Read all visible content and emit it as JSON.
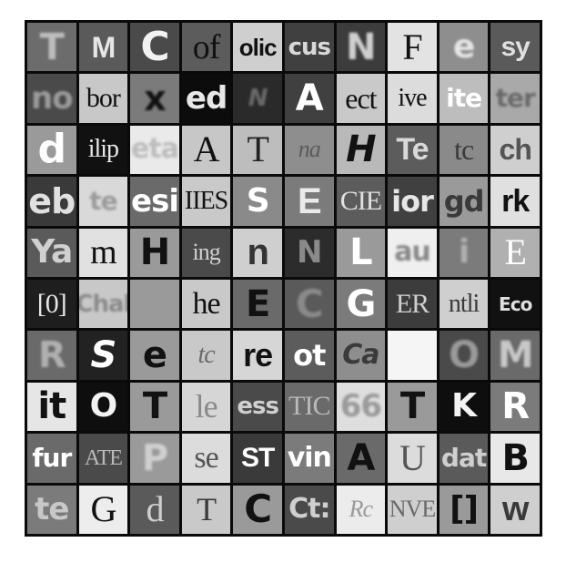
{
  "tiles": [
    {
      "t": "T",
      "bg": "#6c6c6c",
      "fg": "#bdbdbd",
      "fs": 40,
      "c": "blur"
    },
    {
      "t": "M",
      "bg": "#5a5a5a",
      "fg": "#e6e6e6",
      "fs": 32,
      "c": "sans"
    },
    {
      "t": "C",
      "bg": "#4a4a4a",
      "fg": "#f2f2f2",
      "fs": 44,
      "c": ""
    },
    {
      "t": "of",
      "bg": "#5c5c5c",
      "fg": "#111111",
      "fs": 38,
      "c": "serif"
    },
    {
      "t": "olic",
      "bg": "#cfcfcf",
      "fg": "#111111",
      "fs": 26,
      "c": "sans"
    },
    {
      "t": "cus",
      "bg": "#404040",
      "fg": "#d9d9d9",
      "fs": 26,
      "c": ""
    },
    {
      "t": "N",
      "bg": "#3c3c3c",
      "fg": "#cfcfcf",
      "fs": 40,
      "c": "blur"
    },
    {
      "t": "F",
      "bg": "#e3e3e3",
      "fg": "#111111",
      "fs": 40,
      "c": "serif"
    },
    {
      "t": "e",
      "bg": "#8e8e8e",
      "fg": "#e6e6e6",
      "fs": 36,
      "c": "blur"
    },
    {
      "t": "sy",
      "bg": "#5a5a5a",
      "fg": "#e0e0e0",
      "fs": 30,
      "c": "sans"
    },
    {
      "t": "no",
      "bg": "#4a4a4a",
      "fg": "#9a9a9a",
      "fs": 34,
      "c": "blur"
    },
    {
      "t": "bor",
      "bg": "#c8c8c8",
      "fg": "#111111",
      "fs": 30,
      "c": "serif"
    },
    {
      "t": "x",
      "bg": "#7b7b7b",
      "fg": "#111111",
      "fs": 38,
      "c": "blur"
    },
    {
      "t": "ed",
      "bg": "#0c0c0c",
      "fg": "#e8e8e8",
      "fs": 34,
      "c": ""
    },
    {
      "t": "N",
      "bg": "#2a2a2a",
      "fg": "#6a6a6a",
      "fs": 26,
      "c": "blur italic"
    },
    {
      "t": "A",
      "bg": "#404040",
      "fg": "#ffffff",
      "fs": 40,
      "c": ""
    },
    {
      "t": "ect",
      "bg": "#c9c9c9",
      "fg": "#111111",
      "fs": 32,
      "c": "serif"
    },
    {
      "t": "ive",
      "bg": "#dcdcdc",
      "fg": "#111111",
      "fs": 28,
      "c": "serif"
    },
    {
      "t": "ite",
      "bg": "#bdbdbd",
      "fg": "#ffffff",
      "fs": 28,
      "c": ""
    },
    {
      "t": "ter",
      "bg": "#a9a9a9",
      "fg": "#6a6a6a",
      "fs": 28,
      "c": "blur"
    },
    {
      "t": "d",
      "bg": "#9a9a9a",
      "fg": "#ffffff",
      "fs": 44,
      "c": ""
    },
    {
      "t": "ilip",
      "bg": "#111111",
      "fg": "#e8e8e8",
      "fs": 28,
      "c": "serif"
    },
    {
      "t": "eta",
      "bg": "#eaeaea",
      "fg": "#bdbdbd",
      "fs": 30,
      "c": "blur"
    },
    {
      "t": "A",
      "bg": "#c7c7c7",
      "fg": "#111111",
      "fs": 40,
      "c": "serif"
    },
    {
      "t": "T",
      "bg": "#bdbdbd",
      "fg": "#222222",
      "fs": 40,
      "c": "serif"
    },
    {
      "t": "na",
      "bg": "#8e8e8e",
      "fg": "#5a5a5a",
      "fs": 26,
      "c": "serif italic"
    },
    {
      "t": "H",
      "bg": "#b9b9b9",
      "fg": "#111111",
      "fs": 40,
      "c": "italic"
    },
    {
      "t": "Te",
      "bg": "#5c5c5c",
      "fg": "#d9d9d9",
      "fs": 34,
      "c": "sans"
    },
    {
      "t": "tc",
      "bg": "#8a8a8a",
      "fg": "#3a3a3a",
      "fs": 32,
      "c": "serif"
    },
    {
      "t": "ch",
      "bg": "#cfcfcf",
      "fg": "#555555",
      "fs": 32,
      "c": "sans"
    },
    {
      "t": "eb",
      "bg": "#3a3a3a",
      "fg": "#e0e0e0",
      "fs": 38,
      "c": ""
    },
    {
      "t": "te",
      "bg": "#d9d9d9",
      "fg": "#9a9a9a",
      "fs": 28,
      "c": "blur"
    },
    {
      "t": "esi",
      "bg": "#6a6a6a",
      "fg": "#ffffff",
      "fs": 34,
      "c": ""
    },
    {
      "t": "IIES",
      "bg": "#c9c9c9",
      "fg": "#111111",
      "fs": 28,
      "c": "serif"
    },
    {
      "t": "S",
      "bg": "#8a8a8a",
      "fg": "#ffffff",
      "fs": 36,
      "c": ""
    },
    {
      "t": "E",
      "bg": "#7b7b7b",
      "fg": "#eaeaea",
      "fs": 40,
      "c": "sans"
    },
    {
      "t": "CIE",
      "bg": "#5c5c5c",
      "fg": "#e0e0e0",
      "fs": 30,
      "c": "serif"
    },
    {
      "t": "ior",
      "bg": "#404040",
      "fg": "#e6e6e6",
      "fs": 32,
      "c": ""
    },
    {
      "t": "gd",
      "bg": "#9a9a9a",
      "fg": "#3a3a3a",
      "fs": 32,
      "c": ""
    },
    {
      "t": "rk",
      "bg": "#e0e0e0",
      "fg": "#111111",
      "fs": 34,
      "c": "sans"
    },
    {
      "t": "Ya",
      "bg": "#5a5a5a",
      "fg": "#d0d0d0",
      "fs": 36,
      "c": ""
    },
    {
      "t": "m",
      "bg": "#e1e1e1",
      "fg": "#111111",
      "fs": 38,
      "c": "serif"
    },
    {
      "t": "H",
      "bg": "#9a9a9a",
      "fg": "#111111",
      "fs": 40,
      "c": ""
    },
    {
      "t": "ing",
      "bg": "#4a4a4a",
      "fg": "#d0d0d0",
      "fs": 26,
      "c": "serif"
    },
    {
      "t": "n",
      "bg": "#cfcfcf",
      "fg": "#333333",
      "fs": 40,
      "c": "sans"
    },
    {
      "t": "N",
      "bg": "#2c2c2c",
      "fg": "#8a8a8a",
      "fs": 34,
      "c": ""
    },
    {
      "t": "L",
      "bg": "#9a9a9a",
      "fg": "#ffffff",
      "fs": 40,
      "c": ""
    },
    {
      "t": "au",
      "bg": "#efefef",
      "fg": "#8a8a8a",
      "fs": 30,
      "c": "blur"
    },
    {
      "t": "i",
      "bg": "#7b7b7b",
      "fg": "#b0b0b0",
      "fs": 36,
      "c": "blur"
    },
    {
      "t": "E",
      "bg": "#b0b0b0",
      "fg": "#ffffff",
      "fs": 40,
      "c": "serif"
    },
    {
      "t": "[0]",
      "bg": "#1e1e1e",
      "fg": "#e6e6e6",
      "fs": 30,
      "c": "serif"
    },
    {
      "t": "Chal",
      "bg": "#c8c8c8",
      "fg": "#8a8a8a",
      "fs": 26,
      "c": "blur"
    },
    {
      "t": "",
      "bg": "#9a9a9a",
      "fg": "#9a9a9a",
      "fs": 30,
      "c": "blur"
    },
    {
      "t": "he",
      "bg": "#c9c9c9",
      "fg": "#111111",
      "fs": 34,
      "c": "serif"
    },
    {
      "t": "E",
      "bg": "#6a6a6a",
      "fg": "#111111",
      "fs": 40,
      "c": ""
    },
    {
      "t": "C",
      "bg": "#5a5a5a",
      "fg": "#8a8a8a",
      "fs": 42,
      "c": "blur"
    },
    {
      "t": "G",
      "bg": "#7b7b7b",
      "fg": "#ffffff",
      "fs": 40,
      "c": ""
    },
    {
      "t": "ER",
      "bg": "#3c3c3c",
      "fg": "#cfcfcf",
      "fs": 30,
      "c": "serif"
    },
    {
      "t": "ntli",
      "bg": "#cfcfcf",
      "fg": "#3a3a3a",
      "fs": 28,
      "c": "serif"
    },
    {
      "t": "Eco",
      "bg": "#111111",
      "fg": "#e0e0e0",
      "fs": 20,
      "c": ""
    },
    {
      "t": "R",
      "bg": "#6a6a6a",
      "fg": "#b0b0b0",
      "fs": 40,
      "c": "blur"
    },
    {
      "t": "S",
      "bg": "#222222",
      "fg": "#ffffff",
      "fs": 40,
      "c": "italic"
    },
    {
      "t": "e",
      "bg": "#9a9a9a",
      "fg": "#111111",
      "fs": 40,
      "c": ""
    },
    {
      "t": "tc",
      "bg": "#c9c9c9",
      "fg": "#6a6a6a",
      "fs": 28,
      "c": "serif italic"
    },
    {
      "t": "re",
      "bg": "#d6d6d6",
      "fg": "#111111",
      "fs": 36,
      "c": "sans"
    },
    {
      "t": "ot",
      "bg": "#5c5c5c",
      "fg": "#ffffff",
      "fs": 32,
      "c": ""
    },
    {
      "t": "Ca",
      "bg": "#8e8e8e",
      "fg": "#3a3a3a",
      "fs": 30,
      "c": "italic"
    },
    {
      "t": "",
      "bg": "#f5f5f5",
      "fg": "#f5f5f5",
      "fs": 30,
      "c": ""
    },
    {
      "t": "O",
      "bg": "#4a4a4a",
      "fg": "#9a9a9a",
      "fs": 40,
      "c": "blur"
    },
    {
      "t": "M",
      "bg": "#6a6a6a",
      "fg": "#c8c8c8",
      "fs": 40,
      "c": "blur"
    },
    {
      "t": "it",
      "bg": "#e6e6e6",
      "fg": "#111111",
      "fs": 40,
      "c": ""
    },
    {
      "t": "O",
      "bg": "#0e0e0e",
      "fg": "#f2f2f2",
      "fs": 36,
      "c": ""
    },
    {
      "t": "T",
      "bg": "#9a9a9a",
      "fg": "#111111",
      "fs": 40,
      "c": ""
    },
    {
      "t": "le",
      "bg": "#d6d6d6",
      "fg": "#8a8a8a",
      "fs": 36,
      "c": "serif"
    },
    {
      "t": "ess",
      "bg": "#4a4a4a",
      "fg": "#d0d0d0",
      "fs": 26,
      "c": ""
    },
    {
      "t": "TIC",
      "bg": "#6a6a6a",
      "fg": "#b9b9b9",
      "fs": 30,
      "c": "serif"
    },
    {
      "t": "66",
      "bg": "#dedede",
      "fg": "#9a9a9a",
      "fs": 34,
      "c": "blur"
    },
    {
      "t": "T",
      "bg": "#9a9a9a",
      "fg": "#111111",
      "fs": 40,
      "c": ""
    },
    {
      "t": "K",
      "bg": "#0e0e0e",
      "fg": "#f2f2f2",
      "fs": 36,
      "c": ""
    },
    {
      "t": "R",
      "bg": "#7b7b7b",
      "fg": "#ffffff",
      "fs": 40,
      "c": ""
    },
    {
      "t": "fur",
      "bg": "#6a6a6a",
      "fg": "#ffffff",
      "fs": 28,
      "c": ""
    },
    {
      "t": "ATE",
      "bg": "#4a4a4a",
      "fg": "#b9b9b9",
      "fs": 24,
      "c": "serif"
    },
    {
      "t": "P",
      "bg": "#9a9a9a",
      "fg": "#cfcfcf",
      "fs": 40,
      "c": "blur"
    },
    {
      "t": "se",
      "bg": "#dcdcdc",
      "fg": "#555555",
      "fs": 34,
      "c": "serif"
    },
    {
      "t": "ST",
      "bg": "#3a3a3a",
      "fg": "#ffffff",
      "fs": 30,
      "c": "sans"
    },
    {
      "t": "vin",
      "bg": "#7b7b7b",
      "fg": "#ffffff",
      "fs": 30,
      "c": ""
    },
    {
      "t": "A",
      "bg": "#6a6a6a",
      "fg": "#111111",
      "fs": 40,
      "c": ""
    },
    {
      "t": "U",
      "bg": "#dcdcdc",
      "fg": "#555555",
      "fs": 40,
      "c": "serif"
    },
    {
      "t": "dat",
      "bg": "#5a5a5a",
      "fg": "#cfcfcf",
      "fs": 28,
      "c": ""
    },
    {
      "t": "B",
      "bg": "#e8e8e8",
      "fg": "#111111",
      "fs": 40,
      "c": ""
    },
    {
      "t": "te",
      "bg": "#7b7b7b",
      "fg": "#c8c8c8",
      "fs": 34,
      "c": ""
    },
    {
      "t": "G",
      "bg": "#ededed",
      "fg": "#111111",
      "fs": 40,
      "c": "serif"
    },
    {
      "t": "d",
      "bg": "#5a5a5a",
      "fg": "#cfcfcf",
      "fs": 40,
      "c": "serif"
    },
    {
      "t": "T",
      "bg": "#c9c9c9",
      "fg": "#3a3a3a",
      "fs": 36,
      "c": "serif"
    },
    {
      "t": "C",
      "bg": "#9a9a9a",
      "fg": "#111111",
      "fs": 42,
      "c": ""
    },
    {
      "t": "Ct:",
      "bg": "#4a4a4a",
      "fg": "#cfcfcf",
      "fs": 30,
      "c": ""
    },
    {
      "t": "Rc",
      "bg": "#ececec",
      "fg": "#9a9a9a",
      "fs": 26,
      "c": "serif italic"
    },
    {
      "t": "NVE",
      "bg": "#cfcfcf",
      "fg": "#6a6a6a",
      "fs": 26,
      "c": "serif"
    },
    {
      "t": "[]",
      "bg": "#9a9a9a",
      "fg": "#111111",
      "fs": 36,
      "c": ""
    },
    {
      "t": "w",
      "bg": "#cfcfcf",
      "fg": "#3a3a3a",
      "fs": 38,
      "c": "sans"
    }
  ]
}
